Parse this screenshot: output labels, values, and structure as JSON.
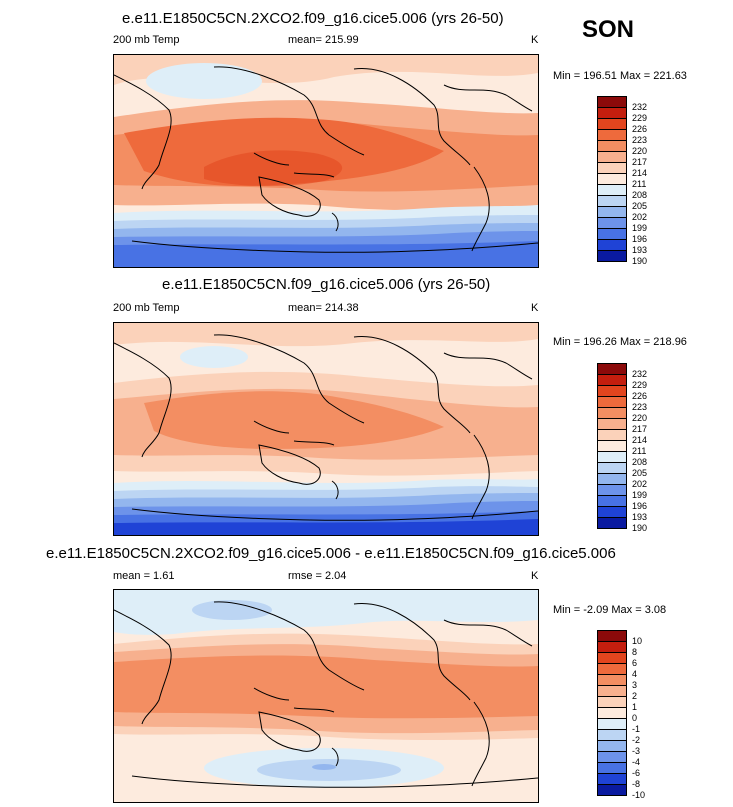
{
  "season": "SON",
  "panels": [
    {
      "title": "e.e11.E1850C5CN.2XCO2.f09_g16.cice5.006 (yrs 26-50)",
      "left_label": "200 mb Temp",
      "center_label": "mean= 215.99",
      "right_label": "K",
      "minmax": "Min = 196.51 Max = 221.63",
      "levels": [
        "232",
        "229",
        "226",
        "223",
        "220",
        "217",
        "214",
        "211",
        "208",
        "205",
        "202",
        "199",
        "196",
        "193",
        "190"
      ]
    },
    {
      "title": "e.e11.E1850C5CN.f09_g16.cice5.006 (yrs 26-50)",
      "left_label": "200 mb Temp",
      "center_label": "mean= 214.38",
      "right_label": "K",
      "minmax": "Min = 196.26 Max = 218.96",
      "levels": [
        "232",
        "229",
        "226",
        "223",
        "220",
        "217",
        "214",
        "211",
        "208",
        "205",
        "202",
        "199",
        "196",
        "193",
        "190"
      ]
    },
    {
      "title": "e.e11.E1850C5CN.2XCO2.f09_g16.cice5.006 - e.e11.E1850C5CN.f09_g16.cice5.006",
      "left_label": "mean =   1.61",
      "center_label": "rmse =   2.04",
      "right_label": "K",
      "minmax": "Min = -2.09 Max =  3.08",
      "levels": [
        "10",
        "8",
        "6",
        "4",
        "3",
        "2",
        "1",
        "0",
        "-1",
        "-2",
        "-3",
        "-4",
        "-6",
        "-8",
        "-10"
      ]
    }
  ],
  "colors": [
    "#8b0a0a",
    "#c41e0e",
    "#e2451e",
    "#ee6a3c",
    "#f38e62",
    "#f7b08e",
    "#fbd2ba",
    "#fdebde",
    "#deeef8",
    "#bcd5f3",
    "#93b6ee",
    "#6d93ea",
    "#4872e4",
    "#1f43d6",
    "#0a1aa0"
  ]
}
